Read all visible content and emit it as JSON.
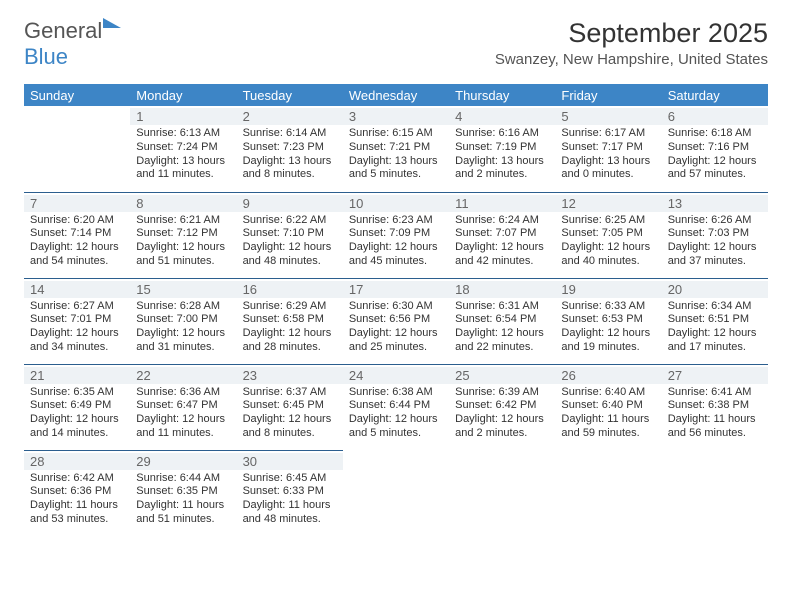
{
  "logo": {
    "part1": "General",
    "part2": "Blue"
  },
  "header": {
    "month_title": "September 2025",
    "location": "Swanzey, New Hampshire, United States"
  },
  "calendar": {
    "header_bg": "#3d85c6",
    "header_fg": "#ffffff",
    "day_header_bg": "#eef2f5",
    "day_header_fg": "#666666",
    "row_border_color": "#2b5e8e",
    "text_color": "#333333",
    "font_family": "Arial",
    "day_label_fontsize": 13,
    "cell_fontsize": 11,
    "columns": [
      "Sunday",
      "Monday",
      "Tuesday",
      "Wednesday",
      "Thursday",
      "Friday",
      "Saturday"
    ],
    "weeks": [
      [
        null,
        {
          "n": "1",
          "sr": "Sunrise: 6:13 AM",
          "ss": "Sunset: 7:24 PM",
          "d1": "Daylight: 13 hours",
          "d2": "and 11 minutes."
        },
        {
          "n": "2",
          "sr": "Sunrise: 6:14 AM",
          "ss": "Sunset: 7:23 PM",
          "d1": "Daylight: 13 hours",
          "d2": "and 8 minutes."
        },
        {
          "n": "3",
          "sr": "Sunrise: 6:15 AM",
          "ss": "Sunset: 7:21 PM",
          "d1": "Daylight: 13 hours",
          "d2": "and 5 minutes."
        },
        {
          "n": "4",
          "sr": "Sunrise: 6:16 AM",
          "ss": "Sunset: 7:19 PM",
          "d1": "Daylight: 13 hours",
          "d2": "and 2 minutes."
        },
        {
          "n": "5",
          "sr": "Sunrise: 6:17 AM",
          "ss": "Sunset: 7:17 PM",
          "d1": "Daylight: 13 hours",
          "d2": "and 0 minutes."
        },
        {
          "n": "6",
          "sr": "Sunrise: 6:18 AM",
          "ss": "Sunset: 7:16 PM",
          "d1": "Daylight: 12 hours",
          "d2": "and 57 minutes."
        }
      ],
      [
        {
          "n": "7",
          "sr": "Sunrise: 6:20 AM",
          "ss": "Sunset: 7:14 PM",
          "d1": "Daylight: 12 hours",
          "d2": "and 54 minutes."
        },
        {
          "n": "8",
          "sr": "Sunrise: 6:21 AM",
          "ss": "Sunset: 7:12 PM",
          "d1": "Daylight: 12 hours",
          "d2": "and 51 minutes."
        },
        {
          "n": "9",
          "sr": "Sunrise: 6:22 AM",
          "ss": "Sunset: 7:10 PM",
          "d1": "Daylight: 12 hours",
          "d2": "and 48 minutes."
        },
        {
          "n": "10",
          "sr": "Sunrise: 6:23 AM",
          "ss": "Sunset: 7:09 PM",
          "d1": "Daylight: 12 hours",
          "d2": "and 45 minutes."
        },
        {
          "n": "11",
          "sr": "Sunrise: 6:24 AM",
          "ss": "Sunset: 7:07 PM",
          "d1": "Daylight: 12 hours",
          "d2": "and 42 minutes."
        },
        {
          "n": "12",
          "sr": "Sunrise: 6:25 AM",
          "ss": "Sunset: 7:05 PM",
          "d1": "Daylight: 12 hours",
          "d2": "and 40 minutes."
        },
        {
          "n": "13",
          "sr": "Sunrise: 6:26 AM",
          "ss": "Sunset: 7:03 PM",
          "d1": "Daylight: 12 hours",
          "d2": "and 37 minutes."
        }
      ],
      [
        {
          "n": "14",
          "sr": "Sunrise: 6:27 AM",
          "ss": "Sunset: 7:01 PM",
          "d1": "Daylight: 12 hours",
          "d2": "and 34 minutes."
        },
        {
          "n": "15",
          "sr": "Sunrise: 6:28 AM",
          "ss": "Sunset: 7:00 PM",
          "d1": "Daylight: 12 hours",
          "d2": "and 31 minutes."
        },
        {
          "n": "16",
          "sr": "Sunrise: 6:29 AM",
          "ss": "Sunset: 6:58 PM",
          "d1": "Daylight: 12 hours",
          "d2": "and 28 minutes."
        },
        {
          "n": "17",
          "sr": "Sunrise: 6:30 AM",
          "ss": "Sunset: 6:56 PM",
          "d1": "Daylight: 12 hours",
          "d2": "and 25 minutes."
        },
        {
          "n": "18",
          "sr": "Sunrise: 6:31 AM",
          "ss": "Sunset: 6:54 PM",
          "d1": "Daylight: 12 hours",
          "d2": "and 22 minutes."
        },
        {
          "n": "19",
          "sr": "Sunrise: 6:33 AM",
          "ss": "Sunset: 6:53 PM",
          "d1": "Daylight: 12 hours",
          "d2": "and 19 minutes."
        },
        {
          "n": "20",
          "sr": "Sunrise: 6:34 AM",
          "ss": "Sunset: 6:51 PM",
          "d1": "Daylight: 12 hours",
          "d2": "and 17 minutes."
        }
      ],
      [
        {
          "n": "21",
          "sr": "Sunrise: 6:35 AM",
          "ss": "Sunset: 6:49 PM",
          "d1": "Daylight: 12 hours",
          "d2": "and 14 minutes."
        },
        {
          "n": "22",
          "sr": "Sunrise: 6:36 AM",
          "ss": "Sunset: 6:47 PM",
          "d1": "Daylight: 12 hours",
          "d2": "and 11 minutes."
        },
        {
          "n": "23",
          "sr": "Sunrise: 6:37 AM",
          "ss": "Sunset: 6:45 PM",
          "d1": "Daylight: 12 hours",
          "d2": "and 8 minutes."
        },
        {
          "n": "24",
          "sr": "Sunrise: 6:38 AM",
          "ss": "Sunset: 6:44 PM",
          "d1": "Daylight: 12 hours",
          "d2": "and 5 minutes."
        },
        {
          "n": "25",
          "sr": "Sunrise: 6:39 AM",
          "ss": "Sunset: 6:42 PM",
          "d1": "Daylight: 12 hours",
          "d2": "and 2 minutes."
        },
        {
          "n": "26",
          "sr": "Sunrise: 6:40 AM",
          "ss": "Sunset: 6:40 PM",
          "d1": "Daylight: 11 hours",
          "d2": "and 59 minutes."
        },
        {
          "n": "27",
          "sr": "Sunrise: 6:41 AM",
          "ss": "Sunset: 6:38 PM",
          "d1": "Daylight: 11 hours",
          "d2": "and 56 minutes."
        }
      ],
      [
        {
          "n": "28",
          "sr": "Sunrise: 6:42 AM",
          "ss": "Sunset: 6:36 PM",
          "d1": "Daylight: 11 hours",
          "d2": "and 53 minutes."
        },
        {
          "n": "29",
          "sr": "Sunrise: 6:44 AM",
          "ss": "Sunset: 6:35 PM",
          "d1": "Daylight: 11 hours",
          "d2": "and 51 minutes."
        },
        {
          "n": "30",
          "sr": "Sunrise: 6:45 AM",
          "ss": "Sunset: 6:33 PM",
          "d1": "Daylight: 11 hours",
          "d2": "and 48 minutes."
        },
        null,
        null,
        null,
        null
      ]
    ]
  }
}
